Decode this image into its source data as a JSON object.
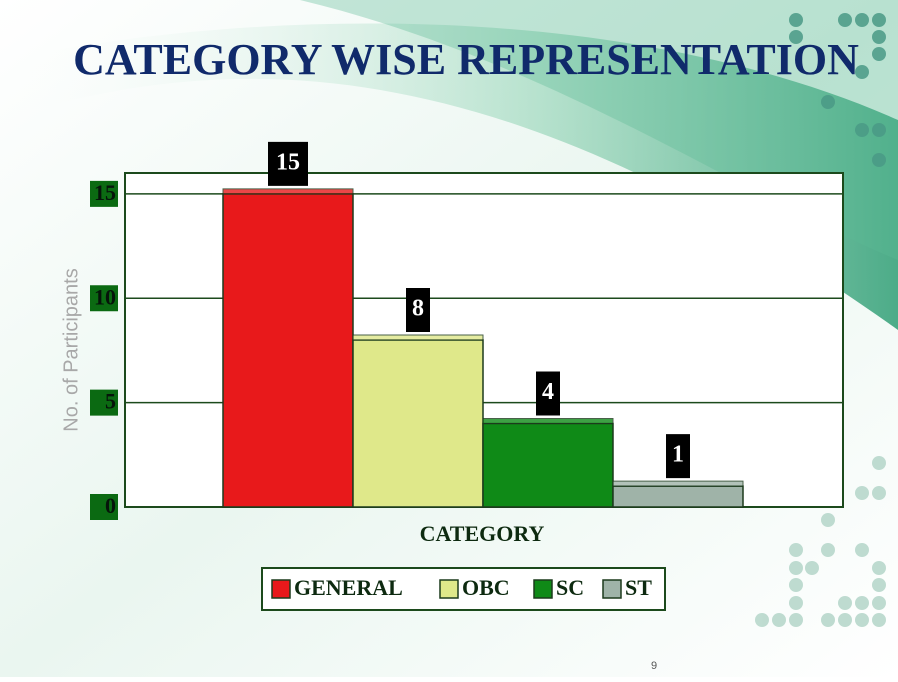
{
  "chart_data": {
    "type": "bar",
    "title": "CATEGORY WISE REPRESENTATION",
    "x_label": "CATEGORY",
    "y_label": "No. of Participants",
    "categories": [
      "GENERAL",
      "OBC",
      "SC",
      "ST"
    ],
    "values": [
      15,
      8,
      4,
      1
    ],
    "colors": [
      "#e8191b",
      "#dfe88a",
      "#0f8a17",
      "#9fb3a8"
    ],
    "ylim": [
      0,
      16
    ],
    "yticks": [
      0,
      5,
      10,
      15
    ],
    "grid": true,
    "legend": "bottom",
    "page_number": "9"
  }
}
